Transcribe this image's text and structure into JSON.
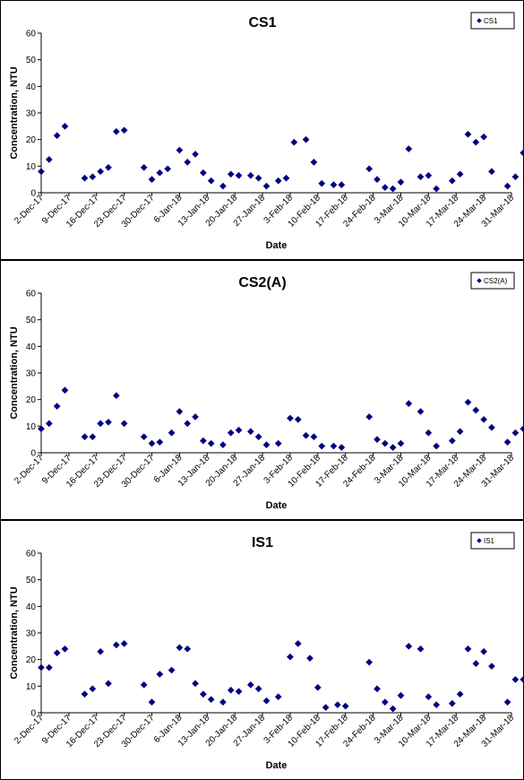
{
  "chart_data": [
    {
      "type": "scatter",
      "title": "CS1",
      "xlabel": "Date",
      "ylabel": "Concentration, NTU",
      "legend": {
        "entries": [
          "CS1"
        ],
        "placement": "top-right"
      },
      "ylim": [
        0,
        60
      ],
      "yticks": [
        0,
        10,
        20,
        30,
        40,
        50,
        60
      ],
      "grid": false,
      "marker_color": "#000080",
      "xticks": [
        "2-Dec-17",
        "9-Dec-17",
        "16-Dec-17",
        "23-Dec-17",
        "30-Dec-17",
        "6-Jan-18",
        "13-Jan-18",
        "20-Jan-18",
        "27-Jan-18",
        "3-Feb-18",
        "10-Feb-18",
        "17-Feb-18",
        "24-Feb-18",
        "3-Mar-18",
        "10-Mar-18",
        "17-Mar-18",
        "24-Mar-18",
        "31-Mar-18"
      ],
      "series": [
        {
          "name": "CS1",
          "points": [
            [
              "2-Dec-17",
              8
            ],
            [
              "4-Dec-17",
              12.5
            ],
            [
              "6-Dec-17",
              21.5
            ],
            [
              "8-Dec-17",
              25
            ],
            [
              "13-Dec-17",
              5.5
            ],
            [
              "15-Dec-17",
              6
            ],
            [
              "17-Dec-17",
              8
            ],
            [
              "19-Dec-17",
              9.5
            ],
            [
              "21-Dec-17",
              23
            ],
            [
              "23-Dec-17",
              23.5
            ],
            [
              "28-Dec-17",
              9.5
            ],
            [
              "30-Dec-17",
              5
            ],
            [
              "1-Jan-18",
              7.5
            ],
            [
              "3-Jan-18",
              9
            ],
            [
              "6-Jan-18",
              16
            ],
            [
              "8-Jan-18",
              11.5
            ],
            [
              "10-Jan-18",
              14.5
            ],
            [
              "12-Jan-18",
              7.5
            ],
            [
              "14-Jan-18",
              4.5
            ],
            [
              "17-Jan-18",
              2.5
            ],
            [
              "19-Jan-18",
              7
            ],
            [
              "21-Jan-18",
              6.5
            ],
            [
              "24-Jan-18",
              6.5
            ],
            [
              "26-Jan-18",
              5.5
            ],
            [
              "28-Jan-18",
              2.5
            ],
            [
              "31-Jan-18",
              4.5
            ],
            [
              "2-Feb-18",
              5.5
            ],
            [
              "4-Feb-18",
              19
            ],
            [
              "7-Feb-18",
              20
            ],
            [
              "9-Feb-18",
              11.5
            ],
            [
              "11-Feb-18",
              3.5
            ],
            [
              "14-Feb-18",
              3
            ],
            [
              "16-Feb-18",
              3
            ],
            [
              "23-Feb-18",
              9
            ],
            [
              "25-Feb-18",
              5
            ],
            [
              "27-Feb-18",
              2
            ],
            [
              "1-Mar-18",
              1.5
            ],
            [
              "3-Mar-18",
              4
            ],
            [
              "5-Mar-18",
              16.5
            ],
            [
              "8-Mar-18",
              6
            ],
            [
              "10-Mar-18",
              6.5
            ],
            [
              "12-Mar-18",
              1.5
            ],
            [
              "16-Mar-18",
              4.5
            ],
            [
              "18-Mar-18",
              7
            ],
            [
              "20-Mar-18",
              22
            ],
            [
              "22-Mar-18",
              19
            ],
            [
              "24-Mar-18",
              21
            ],
            [
              "26-Mar-18",
              8
            ],
            [
              "30-Mar-18",
              2.5
            ],
            [
              "1-Apr-18",
              6
            ],
            [
              "3-Apr-18",
              15
            ]
          ]
        }
      ]
    },
    {
      "type": "scatter",
      "title": "CS2(A)",
      "xlabel": "Date",
      "ylabel": "Concentration, NTU",
      "legend": {
        "entries": [
          "CS2(A)"
        ],
        "placement": "top-right"
      },
      "ylim": [
        0,
        60
      ],
      "yticks": [
        0,
        10,
        20,
        30,
        40,
        50,
        60
      ],
      "grid": false,
      "marker_color": "#000080",
      "xticks": [
        "2-Dec-17",
        "9-Dec-17",
        "16-Dec-17",
        "23-Dec-17",
        "30-Dec-17",
        "6-Jan-18",
        "13-Jan-18",
        "20-Jan-18",
        "27-Jan-18",
        "3-Feb-18",
        "10-Feb-18",
        "17-Feb-18",
        "24-Feb-18",
        "3-Mar-18",
        "10-Mar-18",
        "17-Mar-18",
        "24-Mar-18",
        "31-Mar-18"
      ],
      "series": [
        {
          "name": "CS2(A)",
          "points": [
            [
              "2-Dec-17",
              9
            ],
            [
              "4-Dec-17",
              11
            ],
            [
              "6-Dec-17",
              17.5
            ],
            [
              "8-Dec-17",
              23.5
            ],
            [
              "13-Dec-17",
              6
            ],
            [
              "15-Dec-17",
              6
            ],
            [
              "17-Dec-17",
              11
            ],
            [
              "19-Dec-17",
              11.5
            ],
            [
              "21-Dec-17",
              21.5
            ],
            [
              "23-Dec-17",
              11
            ],
            [
              "28-Dec-17",
              6
            ],
            [
              "30-Dec-17",
              3.5
            ],
            [
              "1-Jan-18",
              4
            ],
            [
              "4-Jan-18",
              7.5
            ],
            [
              "6-Jan-18",
              15.5
            ],
            [
              "8-Jan-18",
              11
            ],
            [
              "10-Jan-18",
              13.5
            ],
            [
              "12-Jan-18",
              4.5
            ],
            [
              "14-Jan-18",
              3.5
            ],
            [
              "17-Jan-18",
              3
            ],
            [
              "19-Jan-18",
              7.5
            ],
            [
              "21-Jan-18",
              8.5
            ],
            [
              "24-Jan-18",
              8
            ],
            [
              "26-Jan-18",
              6
            ],
            [
              "28-Jan-18",
              3
            ],
            [
              "31-Jan-18",
              3.5
            ],
            [
              "3-Feb-18",
              13
            ],
            [
              "5-Feb-18",
              12.5
            ],
            [
              "7-Feb-18",
              6.5
            ],
            [
              "9-Feb-18",
              6
            ],
            [
              "11-Feb-18",
              2.5
            ],
            [
              "14-Feb-18",
              2.5
            ],
            [
              "16-Feb-18",
              2
            ],
            [
              "23-Feb-18",
              13.5
            ],
            [
              "25-Feb-18",
              5
            ],
            [
              "27-Feb-18",
              3.5
            ],
            [
              "1-Mar-18",
              2
            ],
            [
              "3-Mar-18",
              3.5
            ],
            [
              "5-Mar-18",
              18.5
            ],
            [
              "8-Mar-18",
              15.5
            ],
            [
              "10-Mar-18",
              7.5
            ],
            [
              "12-Mar-18",
              2.5
            ],
            [
              "16-Mar-18",
              4.5
            ],
            [
              "18-Mar-18",
              8
            ],
            [
              "20-Mar-18",
              19
            ],
            [
              "22-Mar-18",
              16
            ],
            [
              "24-Mar-18",
              12.5
            ],
            [
              "26-Mar-18",
              9.5
            ],
            [
              "30-Mar-18",
              4
            ],
            [
              "1-Apr-18",
              7.5
            ],
            [
              "3-Apr-18",
              9
            ]
          ]
        }
      ]
    },
    {
      "type": "scatter",
      "title": "IS1",
      "xlabel": "Date",
      "ylabel": "Concentration, NTU",
      "legend": {
        "entries": [
          "IS1"
        ],
        "placement": "top-right"
      },
      "ylim": [
        0,
        60
      ],
      "yticks": [
        0,
        10,
        20,
        30,
        40,
        50,
        60
      ],
      "grid": false,
      "marker_color": "#000080",
      "xticks": [
        "2-Dec-17",
        "9-Dec-17",
        "16-Dec-17",
        "23-Dec-17",
        "30-Dec-17",
        "6-Jan-18",
        "13-Jan-18",
        "20-Jan-18",
        "27-Jan-18",
        "3-Feb-18",
        "10-Feb-18",
        "17-Feb-18",
        "24-Feb-18",
        "3-Mar-18",
        "10-Mar-18",
        "17-Mar-18",
        "24-Mar-18",
        "31-Mar-18"
      ],
      "series": [
        {
          "name": "IS1",
          "points": [
            [
              "2-Dec-17",
              17
            ],
            [
              "4-Dec-17",
              17
            ],
            [
              "6-Dec-17",
              22.5
            ],
            [
              "8-Dec-17",
              24
            ],
            [
              "13-Dec-17",
              7
            ],
            [
              "15-Dec-17",
              9
            ],
            [
              "17-Dec-17",
              23
            ],
            [
              "19-Dec-17",
              11
            ],
            [
              "21-Dec-17",
              25.5
            ],
            [
              "23-Dec-17",
              26
            ],
            [
              "28-Dec-17",
              10.5
            ],
            [
              "30-Dec-17",
              4
            ],
            [
              "1-Jan-18",
              14.5
            ],
            [
              "4-Jan-18",
              16
            ],
            [
              "6-Jan-18",
              24.5
            ],
            [
              "8-Jan-18",
              24
            ],
            [
              "10-Jan-18",
              11
            ],
            [
              "12-Jan-18",
              7
            ],
            [
              "14-Jan-18",
              5
            ],
            [
              "17-Jan-18",
              4
            ],
            [
              "19-Jan-18",
              8.5
            ],
            [
              "21-Jan-18",
              8
            ],
            [
              "24-Jan-18",
              10.5
            ],
            [
              "26-Jan-18",
              9
            ],
            [
              "28-Jan-18",
              4.5
            ],
            [
              "31-Jan-18",
              6
            ],
            [
              "3-Feb-18",
              21
            ],
            [
              "5-Feb-18",
              26
            ],
            [
              "8-Feb-18",
              20.5
            ],
            [
              "10-Feb-18",
              9.5
            ],
            [
              "12-Feb-18",
              2
            ],
            [
              "15-Feb-18",
              3
            ],
            [
              "17-Feb-18",
              2.5
            ],
            [
              "23-Feb-18",
              19
            ],
            [
              "25-Feb-18",
              9
            ],
            [
              "27-Feb-18",
              4
            ],
            [
              "1-Mar-18",
              1.5
            ],
            [
              "3-Mar-18",
              6.5
            ],
            [
              "5-Mar-18",
              25
            ],
            [
              "8-Mar-18",
              24
            ],
            [
              "10-Mar-18",
              6
            ],
            [
              "12-Mar-18",
              3
            ],
            [
              "16-Mar-18",
              3.5
            ],
            [
              "18-Mar-18",
              7
            ],
            [
              "20-Mar-18",
              24
            ],
            [
              "22-Mar-18",
              18.5
            ],
            [
              "24-Mar-18",
              23
            ],
            [
              "26-Mar-18",
              17.5
            ],
            [
              "30-Mar-18",
              4
            ],
            [
              "1-Apr-18",
              12.5
            ],
            [
              "3-Apr-18",
              12.5
            ]
          ]
        }
      ]
    }
  ]
}
